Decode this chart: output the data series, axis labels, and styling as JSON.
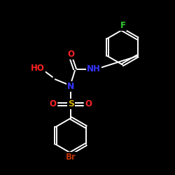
{
  "bg_color": "#000000",
  "atom_colors": {
    "C": "#ffffff",
    "N": "#3333ff",
    "O": "#ff2222",
    "S": "#ccaa00",
    "F": "#33cc33",
    "Br": "#bb3300",
    "H": "#ffffff"
  },
  "bond_color": "#ffffff",
  "bond_width": 1.4,
  "figsize": [
    2.5,
    2.5
  ],
  "dpi": 100
}
